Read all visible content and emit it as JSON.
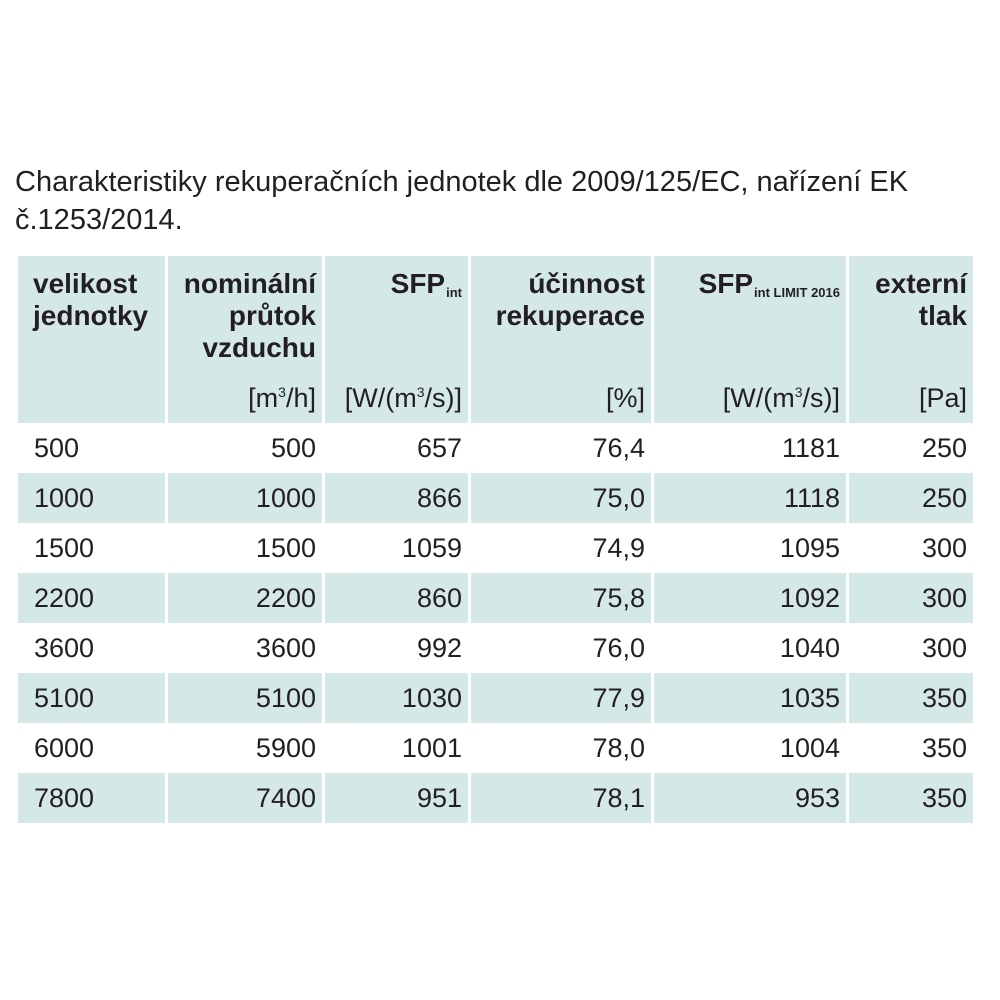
{
  "caption": "Charakteristiky rekuperačních jednotek dle 2009/125/EC, nařízení EK č.1253/2014.",
  "headers": {
    "size": {
      "line1": "velikost",
      "line2": "jednotky"
    },
    "flow": {
      "line1": "nominální",
      "line2": "průtok",
      "line3": "vzduchu",
      "unit_pre": "[m",
      "unit_sup": "3",
      "unit_post": "/h]"
    },
    "sfp": {
      "main": "SFP",
      "sub": "int",
      "unit_pre": "[W/(m",
      "unit_sup": "3",
      "unit_post": "/s)]"
    },
    "eff": {
      "line1": "účinnost",
      "line2": "rekuperace",
      "unit": "[%]"
    },
    "sfp_limit": {
      "main": "SFP",
      "sub": "int LIMIT 2016",
      "unit_pre": "[W/(m",
      "unit_sup": "3",
      "unit_post": "/s)]"
    },
    "pressure": {
      "line1": "externí",
      "line2": "tlak",
      "unit": "[Pa]"
    }
  },
  "rows": [
    [
      "500",
      "500",
      "657",
      "76,4",
      "1181",
      "250"
    ],
    [
      "1000",
      "1000",
      "866",
      "75,0",
      "1118",
      "250"
    ],
    [
      "1500",
      "1500",
      "1059",
      "74,9",
      "1095",
      "300"
    ],
    [
      "2200",
      "2200",
      "860",
      "75,8",
      "1092",
      "300"
    ],
    [
      "3600",
      "3600",
      "992",
      "76,0",
      "1040",
      "300"
    ],
    [
      "5100",
      "5100",
      "1030",
      "77,9",
      "1035",
      "350"
    ],
    [
      "6000",
      "5900",
      "1001",
      "78,0",
      "1004",
      "350"
    ],
    [
      "7800",
      "7400",
      "951",
      "78,1",
      "953",
      "350"
    ]
  ],
  "colors": {
    "shade": "#d4e8e8",
    "text": "#231f20"
  }
}
